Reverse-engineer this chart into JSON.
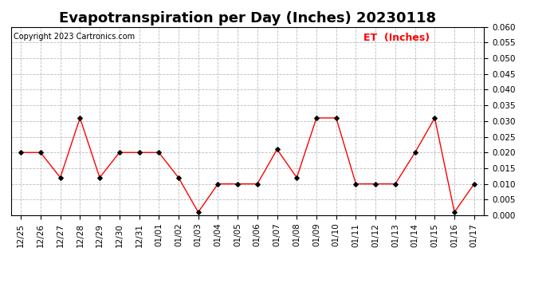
{
  "title": "Evapotranspiration per Day (Inches) 20230118",
  "copyright": "Copyright 2023 Cartronics.com",
  "legend_label": "ET  (Inches)",
  "x_labels": [
    "12/25",
    "12/26",
    "12/27",
    "12/28",
    "12/29",
    "12/30",
    "12/31",
    "01/01",
    "01/02",
    "01/03",
    "01/04",
    "01/05",
    "01/06",
    "01/07",
    "01/08",
    "01/09",
    "01/10",
    "01/11",
    "01/12",
    "01/13",
    "01/14",
    "01/15",
    "01/16",
    "01/17"
  ],
  "y_values": [
    0.02,
    0.02,
    0.012,
    0.031,
    0.012,
    0.02,
    0.02,
    0.02,
    0.012,
    0.001,
    0.01,
    0.01,
    0.01,
    0.021,
    0.012,
    0.031,
    0.031,
    0.01,
    0.01,
    0.01,
    0.02,
    0.031,
    0.001,
    0.01
  ],
  "line_color": "red",
  "marker_color": "black",
  "marker_style": "D",
  "ylim": [
    0.0,
    0.06
  ],
  "yticks": [
    0.0,
    0.005,
    0.01,
    0.015,
    0.02,
    0.025,
    0.03,
    0.035,
    0.04,
    0.045,
    0.05,
    0.055,
    0.06
  ],
  "background_color": "#ffffff",
  "grid_color": "#bbbbbb",
  "title_fontsize": 13,
  "copyright_fontsize": 7,
  "legend_color": "red",
  "legend_fontsize": 9,
  "tick_fontsize": 7.5
}
